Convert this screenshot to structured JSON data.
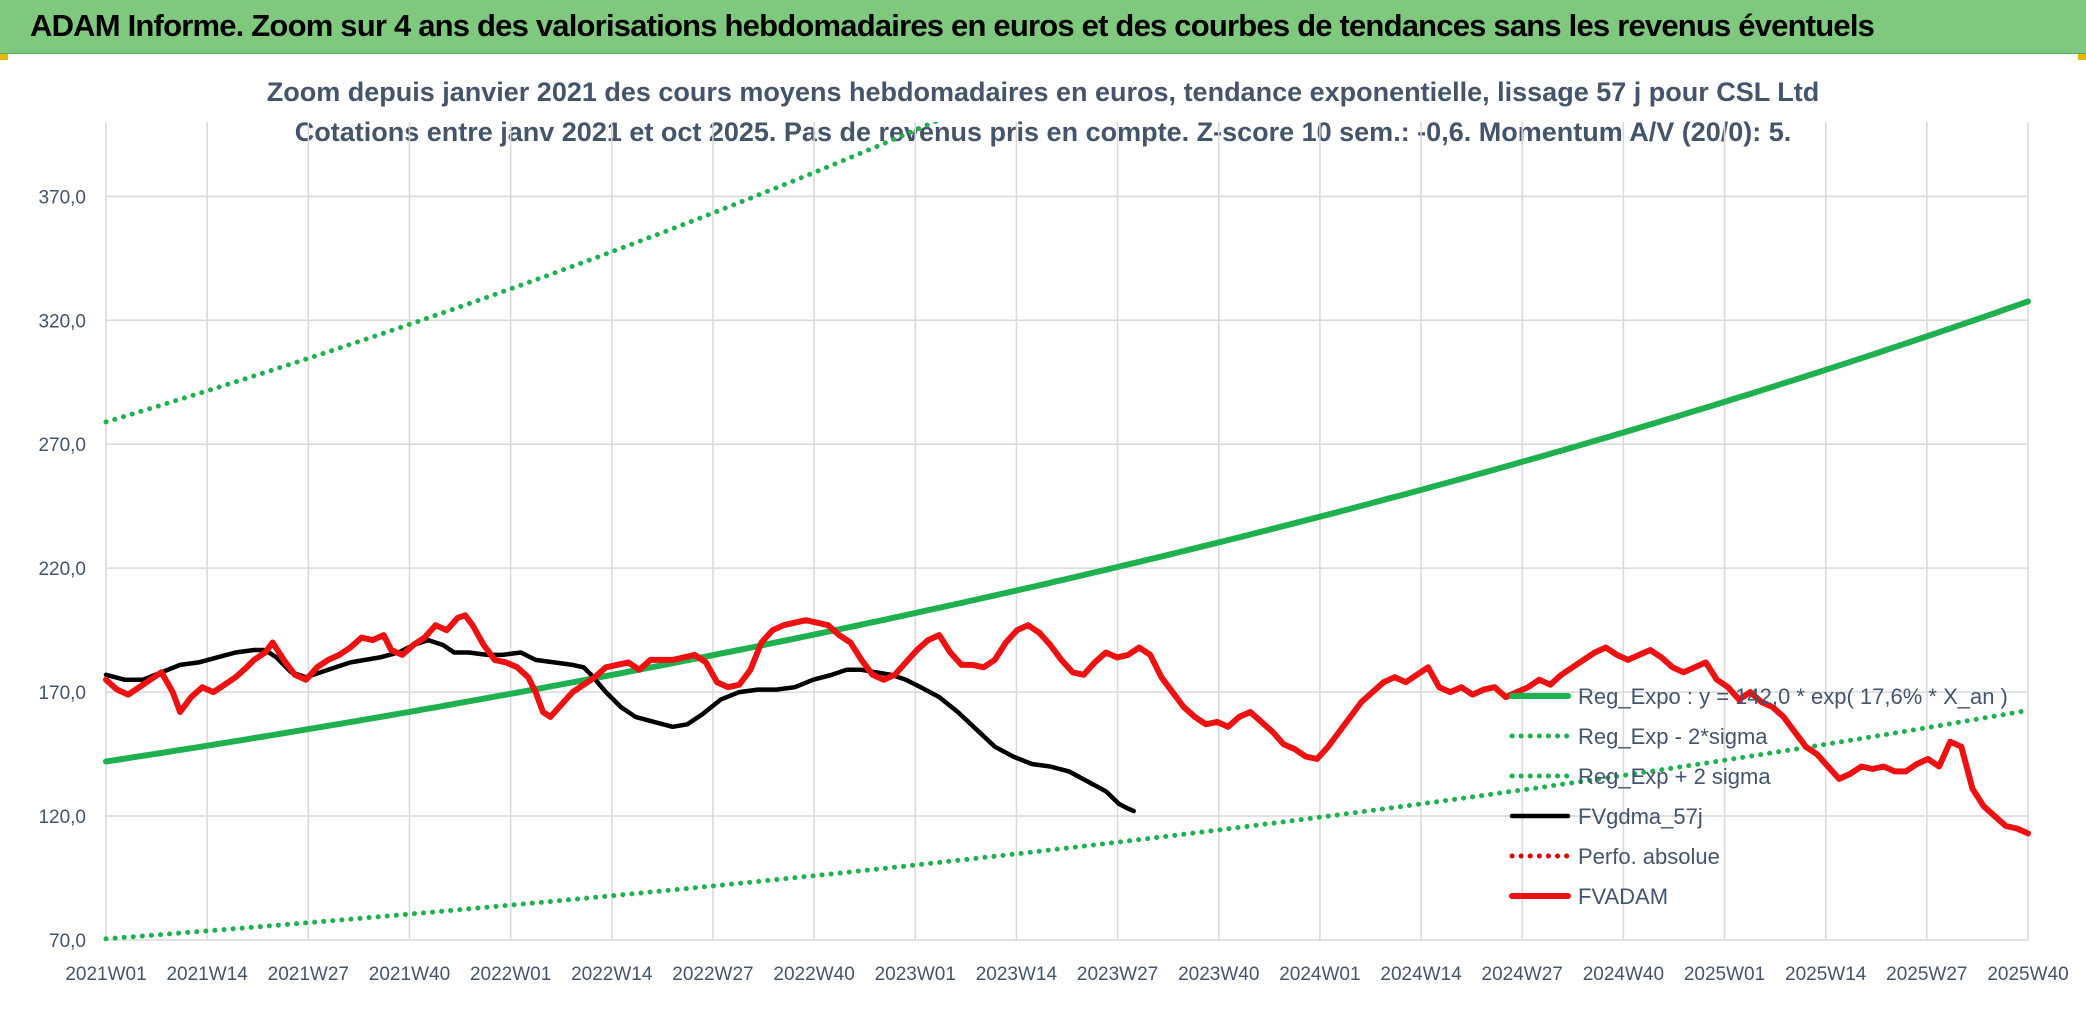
{
  "banner": {
    "title": "ADAM Informe. Zoom sur 4 ans des valorisations hebdomadaires en euros et des courbes de tendances sans les revenus éventuels"
  },
  "colors": {
    "banner_bg": "#7fc97f",
    "trend_green": "#1fb14f",
    "price_red": "#ee1111",
    "moving_avg_black": "#000000",
    "perf_red": "#dd0000",
    "text": "#44546a",
    "grid": "#d9d9d9"
  },
  "chart_data": {
    "type": "line",
    "title_lines": [
      "Zoom depuis janvier 2021 des cours moyens hebdomadaires en euros, tendance exponentielle, lissage 57 j pour CSL Ltd",
      "Cotations entre janv 2021 et oct 2025. Pas de revenus pris en compte. Z-score 10 sem.: -0,6. Momentum A/V (20/0): 5."
    ],
    "x_tick_labels": [
      "2021W01",
      "2021W14",
      "2021W27",
      "2021W40",
      "2022W01",
      "2022W14",
      "2022W27",
      "2022W40",
      "2023W01",
      "2023W14",
      "2023W27",
      "2023W40",
      "2024W01",
      "2024W14",
      "2024W27",
      "2024W40",
      "2025W01",
      "2025W14",
      "2025W27",
      "2025W40"
    ],
    "x_range_weeks": [
      0,
      247
    ],
    "y_tick_labels": [
      "70,0",
      "120,0",
      "170,0",
      "220,0",
      "270,0",
      "320,0",
      "370,0"
    ],
    "ylim": [
      70,
      400
    ],
    "grid": true,
    "legend_position": "bottom-right",
    "series": [
      {
        "name": "Reg_Expo : y = 142,0 * exp( 17,6% * X_an )",
        "style": "solid-thick",
        "color": "#1fb14f",
        "formula": {
          "a": 142.0,
          "rate": 0.176
        }
      },
      {
        "name": "Reg_Exp - 2*sigma",
        "style": "dotted",
        "color": "#1fb14f",
        "formula": {
          "a": 70.5,
          "rate": 0.176
        }
      },
      {
        "name": "Reg_Exp + 2 sigma",
        "style": "dotted",
        "color": "#1fb14f",
        "formula": {
          "a": 279.0,
          "rate": 0.176
        }
      },
      {
        "name": "FVgdma_57j",
        "style": "solid",
        "color": "#000000",
        "points": [
          [
            0,
            177
          ],
          [
            10,
            175
          ],
          [
            20,
            175
          ],
          [
            30,
            178
          ],
          [
            40,
            181
          ],
          [
            50,
            182
          ],
          [
            60,
            184
          ],
          [
            70,
            186
          ],
          [
            80,
            187
          ],
          [
            86,
            187
          ],
          [
            92,
            184
          ],
          [
            100,
            178
          ],
          [
            108,
            176
          ],
          [
            116,
            178
          ],
          [
            124,
            180
          ],
          [
            132,
            182
          ],
          [
            140,
            183
          ],
          [
            148,
            184
          ],
          [
            158,
            186
          ],
          [
            166,
            189
          ],
          [
            174,
            191
          ],
          [
            182,
            189
          ],
          [
            188,
            186
          ],
          [
            196,
            186
          ],
          [
            206,
            185
          ],
          [
            214,
            185
          ],
          [
            224,
            186
          ],
          [
            232,
            183
          ],
          [
            242,
            182
          ],
          [
            252,
            181
          ],
          [
            258,
            180
          ],
          [
            262,
            177
          ],
          [
            270,
            170
          ],
          [
            278,
            164
          ],
          [
            286,
            160
          ],
          [
            296,
            158
          ],
          [
            306,
            156
          ],
          [
            314,
            157
          ],
          [
            322,
            161
          ],
          [
            332,
            167
          ],
          [
            342,
            170
          ],
          [
            352,
            171
          ],
          [
            362,
            171
          ],
          [
            372,
            172
          ],
          [
            382,
            175
          ],
          [
            392,
            177
          ],
          [
            400,
            179
          ],
          [
            408,
            179
          ],
          [
            416,
            178
          ],
          [
            424,
            177
          ],
          [
            432,
            175
          ],
          [
            440,
            172
          ],
          [
            450,
            168
          ],
          [
            460,
            162
          ],
          [
            470,
            155
          ],
          [
            480,
            148
          ],
          [
            490,
            144
          ],
          [
            500,
            141
          ],
          [
            510,
            140
          ],
          [
            520,
            138
          ],
          [
            530,
            134
          ],
          [
            540,
            130
          ],
          [
            547,
            125
          ],
          [
            552,
            123
          ],
          [
            555,
            122
          ]
        ]
      },
      {
        "name": "Perfo. absolue",
        "style": "dotted",
        "color": "#dd0000",
        "points": []
      },
      {
        "name": "FVADAM",
        "style": "solid-thick",
        "color": "#ee1111",
        "points": [
          [
            0,
            175
          ],
          [
            6,
            171
          ],
          [
            12,
            169
          ],
          [
            18,
            172
          ],
          [
            24,
            175
          ],
          [
            30,
            178
          ],
          [
            36,
            170
          ],
          [
            40,
            162
          ],
          [
            46,
            168
          ],
          [
            52,
            172
          ],
          [
            58,
            170
          ],
          [
            64,
            173
          ],
          [
            70,
            176
          ],
          [
            76,
            180
          ],
          [
            80,
            183
          ],
          [
            86,
            186
          ],
          [
            90,
            190
          ],
          [
            96,
            183
          ],
          [
            102,
            177
          ],
          [
            108,
            175
          ],
          [
            114,
            180
          ],
          [
            120,
            183
          ],
          [
            126,
            185
          ],
          [
            132,
            188
          ],
          [
            138,
            192
          ],
          [
            144,
            191
          ],
          [
            150,
            193
          ],
          [
            154,
            187
          ],
          [
            160,
            185
          ],
          [
            166,
            189
          ],
          [
            172,
            192
          ],
          [
            178,
            197
          ],
          [
            184,
            195
          ],
          [
            190,
            200
          ],
          [
            194,
            201
          ],
          [
            198,
            197
          ],
          [
            204,
            189
          ],
          [
            210,
            183
          ],
          [
            216,
            182
          ],
          [
            222,
            180
          ],
          [
            228,
            176
          ],
          [
            232,
            170
          ],
          [
            236,
            162
          ],
          [
            240,
            160
          ],
          [
            246,
            165
          ],
          [
            252,
            170
          ],
          [
            258,
            173
          ],
          [
            264,
            176
          ],
          [
            270,
            180
          ],
          [
            276,
            181
          ],
          [
            282,
            182
          ],
          [
            288,
            179
          ],
          [
            294,
            183
          ],
          [
            300,
            183
          ],
          [
            306,
            183
          ],
          [
            312,
            184
          ],
          [
            318,
            185
          ],
          [
            324,
            182
          ],
          [
            330,
            174
          ],
          [
            336,
            172
          ],
          [
            342,
            173
          ],
          [
            348,
            179
          ],
          [
            354,
            190
          ],
          [
            360,
            195
          ],
          [
            366,
            197
          ],
          [
            372,
            198
          ],
          [
            378,
            199
          ],
          [
            384,
            198
          ],
          [
            390,
            197
          ],
          [
            396,
            193
          ],
          [
            402,
            190
          ],
          [
            408,
            183
          ],
          [
            414,
            177
          ],
          [
            420,
            175
          ],
          [
            426,
            177
          ],
          [
            432,
            182
          ],
          [
            438,
            187
          ],
          [
            444,
            191
          ],
          [
            450,
            193
          ],
          [
            456,
            186
          ],
          [
            462,
            181
          ],
          [
            468,
            181
          ],
          [
            474,
            180
          ],
          [
            480,
            183
          ],
          [
            486,
            190
          ],
          [
            492,
            195
          ],
          [
            498,
            197
          ],
          [
            504,
            194
          ],
          [
            510,
            189
          ],
          [
            516,
            183
          ],
          [
            522,
            178
          ],
          [
            528,
            177
          ],
          [
            534,
            182
          ],
          [
            540,
            186
          ],
          [
            546,
            184
          ],
          [
            552,
            185
          ],
          [
            558,
            188
          ],
          [
            564,
            185
          ],
          [
            570,
            176
          ],
          [
            576,
            170
          ],
          [
            582,
            164
          ],
          [
            588,
            160
          ],
          [
            594,
            157
          ],
          [
            600,
            158
          ],
          [
            606,
            156
          ],
          [
            612,
            160
          ],
          [
            618,
            162
          ],
          [
            624,
            158
          ],
          [
            630,
            154
          ],
          [
            636,
            149
          ],
          [
            642,
            147
          ],
          [
            648,
            144
          ],
          [
            654,
            143
          ],
          [
            660,
            148
          ],
          [
            666,
            154
          ],
          [
            672,
            160
          ],
          [
            678,
            166
          ],
          [
            684,
            170
          ],
          [
            690,
            174
          ],
          [
            696,
            176
          ],
          [
            702,
            174
          ],
          [
            708,
            177
          ],
          [
            714,
            180
          ],
          [
            720,
            172
          ],
          [
            726,
            170
          ],
          [
            732,
            172
          ],
          [
            738,
            169
          ],
          [
            744,
            171
          ],
          [
            750,
            172
          ],
          [
            756,
            168
          ],
          [
            762,
            170
          ],
          [
            768,
            172
          ],
          [
            774,
            175
          ],
          [
            780,
            173
          ],
          [
            786,
            177
          ],
          [
            792,
            180
          ],
          [
            798,
            183
          ],
          [
            804,
            186
          ],
          [
            810,
            188
          ],
          [
            816,
            185
          ],
          [
            822,
            183
          ],
          [
            828,
            185
          ],
          [
            834,
            187
          ],
          [
            840,
            184
          ],
          [
            846,
            180
          ],
          [
            852,
            178
          ],
          [
            858,
            180
          ],
          [
            864,
            182
          ],
          [
            870,
            175
          ],
          [
            876,
            172
          ],
          [
            882,
            167
          ],
          [
            888,
            170
          ],
          [
            894,
            166
          ],
          [
            900,
            164
          ],
          [
            906,
            160
          ],
          [
            912,
            154
          ],
          [
            918,
            148
          ],
          [
            924,
            145
          ],
          [
            930,
            140
          ],
          [
            936,
            135
          ],
          [
            942,
            137
          ],
          [
            948,
            140
          ],
          [
            954,
            139
          ],
          [
            960,
            140
          ],
          [
            966,
            138
          ],
          [
            972,
            138
          ],
          [
            978,
            141
          ],
          [
            984,
            143
          ],
          [
            990,
            140
          ],
          [
            996,
            150
          ],
          [
            1002,
            148
          ],
          [
            1008,
            131
          ],
          [
            1014,
            124
          ],
          [
            1020,
            120
          ],
          [
            1026,
            116
          ],
          [
            1032,
            115
          ],
          [
            1038,
            113
          ]
        ]
      }
    ]
  }
}
